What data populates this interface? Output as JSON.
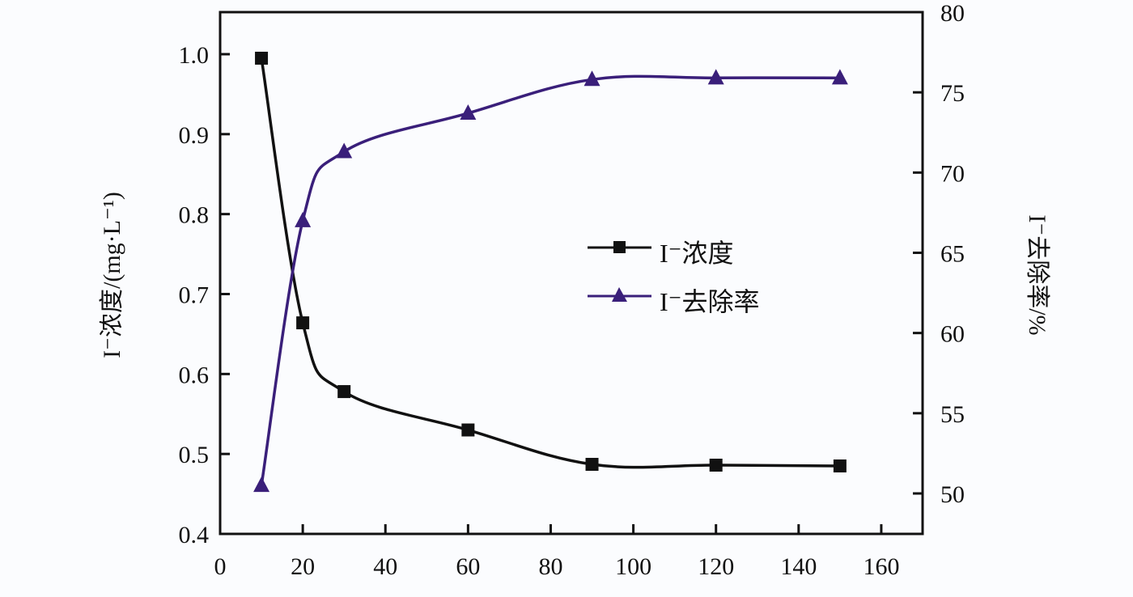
{
  "chart_data": {
    "type": "line",
    "title": "",
    "xlabel": "",
    "ylabel": "I⁻浓度/(mg·L⁻¹)",
    "y2label": "I⁻去除率/%",
    "xlim": [
      0,
      170
    ],
    "ylim": [
      0.4,
      1.05
    ],
    "y2lim": [
      47.5,
      80
    ],
    "x_ticks": [
      0,
      20,
      40,
      60,
      80,
      100,
      120,
      140,
      160
    ],
    "y_ticks": [
      "0.4",
      "0.5",
      "0.6",
      "0.7",
      "0.8",
      "0.9",
      "1.0"
    ],
    "y2_ticks": [
      "50",
      "55",
      "60",
      "65",
      "70",
      "75",
      "80"
    ],
    "grid": false,
    "legend_position": "center-right",
    "x": [
      10,
      20,
      30,
      60,
      90,
      120,
      150
    ],
    "series": [
      {
        "name": "I⁻浓度",
        "axis": "left",
        "marker": "square",
        "color": "#111111",
        "values": [
          0.995,
          0.664,
          0.578,
          0.53,
          0.487,
          0.486,
          0.485
        ]
      },
      {
        "name": "I⁻去除率",
        "axis": "right",
        "marker": "triangle",
        "color": "#3a1f7a",
        "values": [
          50.5,
          67.0,
          71.3,
          73.7,
          75.8,
          75.9,
          75.9
        ]
      }
    ]
  },
  "legend": {
    "items": [
      {
        "label": "I⁻浓度"
      },
      {
        "label": "I⁻去除率"
      }
    ]
  },
  "axes": {
    "left_title": "I⁻浓度/(mg·L⁻¹)",
    "right_title": "I⁻去除率/%"
  }
}
